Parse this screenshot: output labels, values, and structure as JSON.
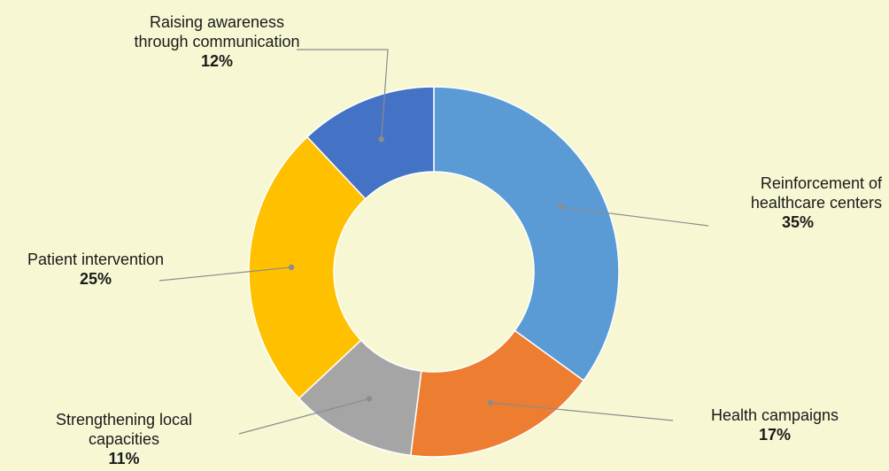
{
  "chart_data": {
    "type": "pie",
    "donut": true,
    "title": "",
    "start_angle_deg": 0,
    "direction": "clockwise",
    "slices": [
      {
        "label": "Reinforcement of healthcare centers",
        "value": 35,
        "display": "35%",
        "color": "#5B9BD5"
      },
      {
        "label": "Health campaigns",
        "value": 17,
        "display": "17%",
        "color": "#ED7D31"
      },
      {
        "label": "Strengthening local capacities",
        "value": 11,
        "display": "11%",
        "color": "#A5A5A5"
      },
      {
        "label": "Patient intervention",
        "value": 25,
        "display": "25%",
        "color": "#FFC000"
      },
      {
        "label": "Raising awareness through communication",
        "value": 12,
        "display": "12%",
        "color": "#4472C4"
      }
    ],
    "legend": "none"
  },
  "background_color": "#F7F8D3"
}
